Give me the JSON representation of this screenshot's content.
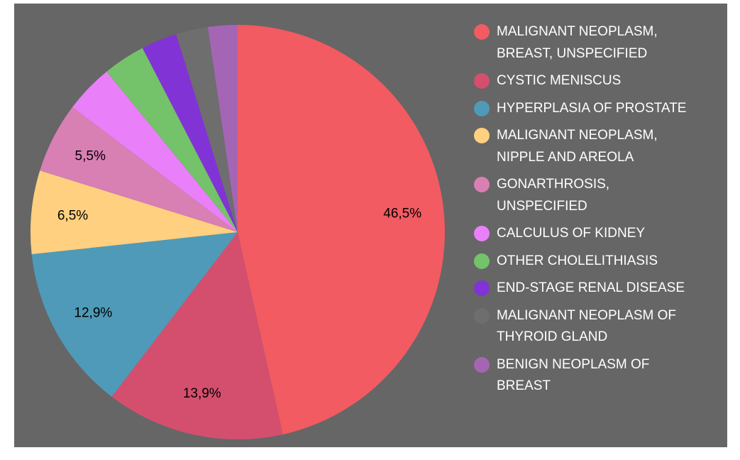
{
  "chart_data": {
    "type": "pie",
    "categories": [
      "MALIGNANT NEOPLASM, BREAST, UNSPECIFIED",
      "CYSTIC MENISCUS",
      "HYPERPLASIA OF PROSTATE",
      "MALIGNANT NEOPLASM, NIPPLE AND AREOLA",
      "GONARTHROSIS, UNSPECIFIED",
      "CALCULUS OF KIDNEY",
      "OTHER CHOLELITHIASIS",
      "END-STAGE RENAL DISEASE",
      "MALIGNANT NEOPLASM OF THYROID GLAND",
      "BENIGN NEOPLASM OF BREAST"
    ],
    "values": [
      46.5,
      13.9,
      12.9,
      6.5,
      5.5,
      3.8,
      3.3,
      2.8,
      2.5,
      2.3
    ],
    "value_labels": [
      "46,5%",
      "13,9%",
      "12,9%",
      "6,5%",
      "5,5%",
      null,
      null,
      null,
      null,
      null
    ],
    "colors": [
      "#f25b61",
      "#d44f6e",
      "#4f9ab8",
      "#ffd080",
      "#d87fb4",
      "#ea7ffa",
      "#74c26a",
      "#8133d6",
      "#6e6e6e",
      "#a565b5"
    ],
    "legend": "right"
  }
}
